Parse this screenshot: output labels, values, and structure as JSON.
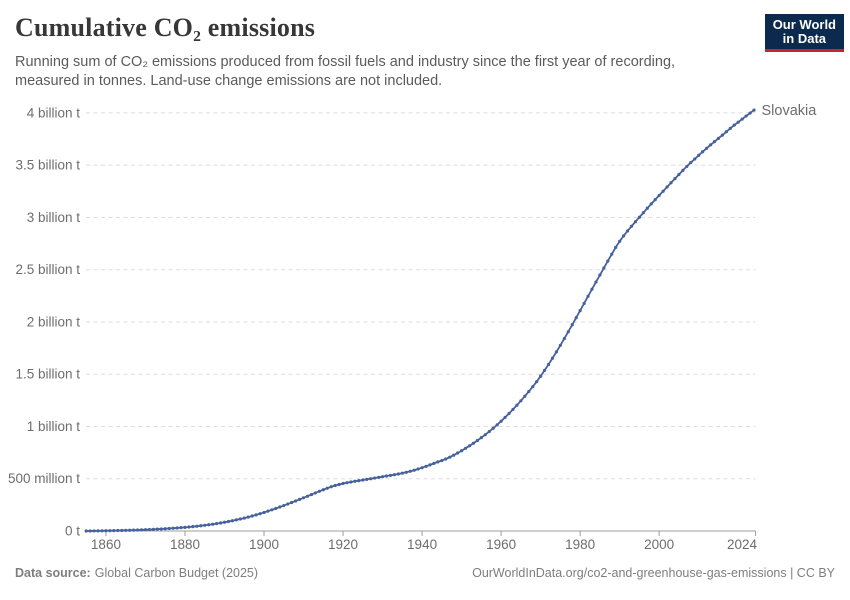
{
  "header": {
    "title": "Cumulative CO₂ emissions",
    "subtitle": "Running sum of CO₂ emissions produced from fossil fuels and industry since the first year of recording, measured in tonnes. Land-use change emissions are not included.",
    "logo": {
      "line1": "Our World",
      "line2": "in Data"
    }
  },
  "footer": {
    "source_label": "Data source:",
    "source_value": "Global Carbon Budget (2025)",
    "credit": "OurWorldInData.org/co2-and-greenhouse-gas-emissions | CC BY"
  },
  "chart_data": {
    "type": "line",
    "title": "Cumulative CO₂ emissions",
    "entity": "Slovakia",
    "unit": "tonnes",
    "values_unit": "million tonnes",
    "x_start": 1855,
    "x_step": 1,
    "x_end": 2024,
    "xlim": [
      1855,
      2024
    ],
    "ylim_mt": [
      0,
      4100
    ],
    "grid": true,
    "legend_position": "end-of-line-label",
    "line_color": "#46619b",
    "axis_color": "#9e9e9e",
    "grid_color": "#dddddd",
    "label_color": "#6d6d6d",
    "values": [
      0.2,
      0.5,
      0.8,
      1.2,
      1.7,
      2.3,
      3,
      3.7,
      4.5,
      5.4,
      6.4,
      7.4,
      8.5,
      9.7,
      11,
      12.4,
      14,
      15.7,
      17.6,
      19.6,
      21.8,
      24.1,
      26.6,
      29.2,
      32,
      35,
      38.3,
      41.9,
      45.8,
      50,
      54.6,
      59.6,
      65,
      70.8,
      77,
      83.6,
      90.6,
      98.1,
      106.1,
      114.6,
      123.6,
      133.2,
      143.4,
      154.2,
      165.6,
      177.6,
      190,
      202.8,
      216,
      229.6,
      243.6,
      257.9,
      272.5,
      287.3,
      302.3,
      317.5,
      332.9,
      348.5,
      364.3,
      379.8,
      394.8,
      409.3,
      423.3,
      435.3,
      445.3,
      454.3,
      462.3,
      469.3,
      475.8,
      482,
      488,
      494,
      500.2,
      506.6,
      513.2,
      519.7,
      526,
      532.2,
      538.7,
      545.7,
      553.3,
      561.7,
      571.1,
      581.6,
      593.1,
      605.6,
      618.8,
      632.6,
      647.1,
      661.1,
      674.1,
      689.1,
      706.1,
      725.1,
      746.1,
      768.1,
      791.1,
      815.1,
      840.1,
      866.1,
      893.1,
      921.6,
      951.6,
      983.1,
      1016.1,
      1050.6,
      1086.6,
      1124.1,
      1163.1,
      1203.6,
      1245.6,
      1289.1,
      1334.1,
      1380.6,
      1428.6,
      1481.6,
      1536.6,
      1593.6,
      1652.6,
      1713.6,
      1776.6,
      1841.1,
      1906.6,
      1973.1,
      2040.6,
      2108.6,
      2177.1,
      2245.6,
      2313.6,
      2381.6,
      2449.1,
      2516.1,
      2582.6,
      2648.6,
      2713.6,
      2771.6,
      2823.6,
      2870.6,
      2915.6,
      2959.1,
      3002.1,
      3045.1,
      3087.6,
      3129.6,
      3170.6,
      3210.6,
      3251.1,
      3291.1,
      3331.6,
      3371.6,
      3411.1,
      3450.1,
      3488.1,
      3525.1,
      3559.1,
      3594.1,
      3628.6,
      3661.6,
      3694.1,
      3725.1,
      3756.6,
      3787.6,
      3819.6,
      3852.1,
      3883.1,
      3911.1,
      3941.1,
      3970.1,
      3998.1,
      4027.1
    ],
    "yticks": [
      {
        "value_mt": 0,
        "label": "0 t"
      },
      {
        "value_mt": 500,
        "label": "500 million t"
      },
      {
        "value_mt": 1000,
        "label": "1 billion t"
      },
      {
        "value_mt": 1500,
        "label": "1.5 billion t"
      },
      {
        "value_mt": 2000,
        "label": "2 billion t"
      },
      {
        "value_mt": 2500,
        "label": "2.5 billion t"
      },
      {
        "value_mt": 3000,
        "label": "3 billion t"
      },
      {
        "value_mt": 3500,
        "label": "3.5 billion t"
      },
      {
        "value_mt": 4000,
        "label": "4 billion t"
      }
    ],
    "xticks": [
      {
        "value": 1860,
        "label": "1860"
      },
      {
        "value": 1880,
        "label": "1880"
      },
      {
        "value": 1900,
        "label": "1900"
      },
      {
        "value": 1920,
        "label": "1920"
      },
      {
        "value": 1940,
        "label": "1940"
      },
      {
        "value": 1960,
        "label": "1960"
      },
      {
        "value": 1980,
        "label": "1980"
      },
      {
        "value": 2000,
        "label": "2000"
      },
      {
        "value": 2024,
        "label": "2024"
      }
    ]
  }
}
